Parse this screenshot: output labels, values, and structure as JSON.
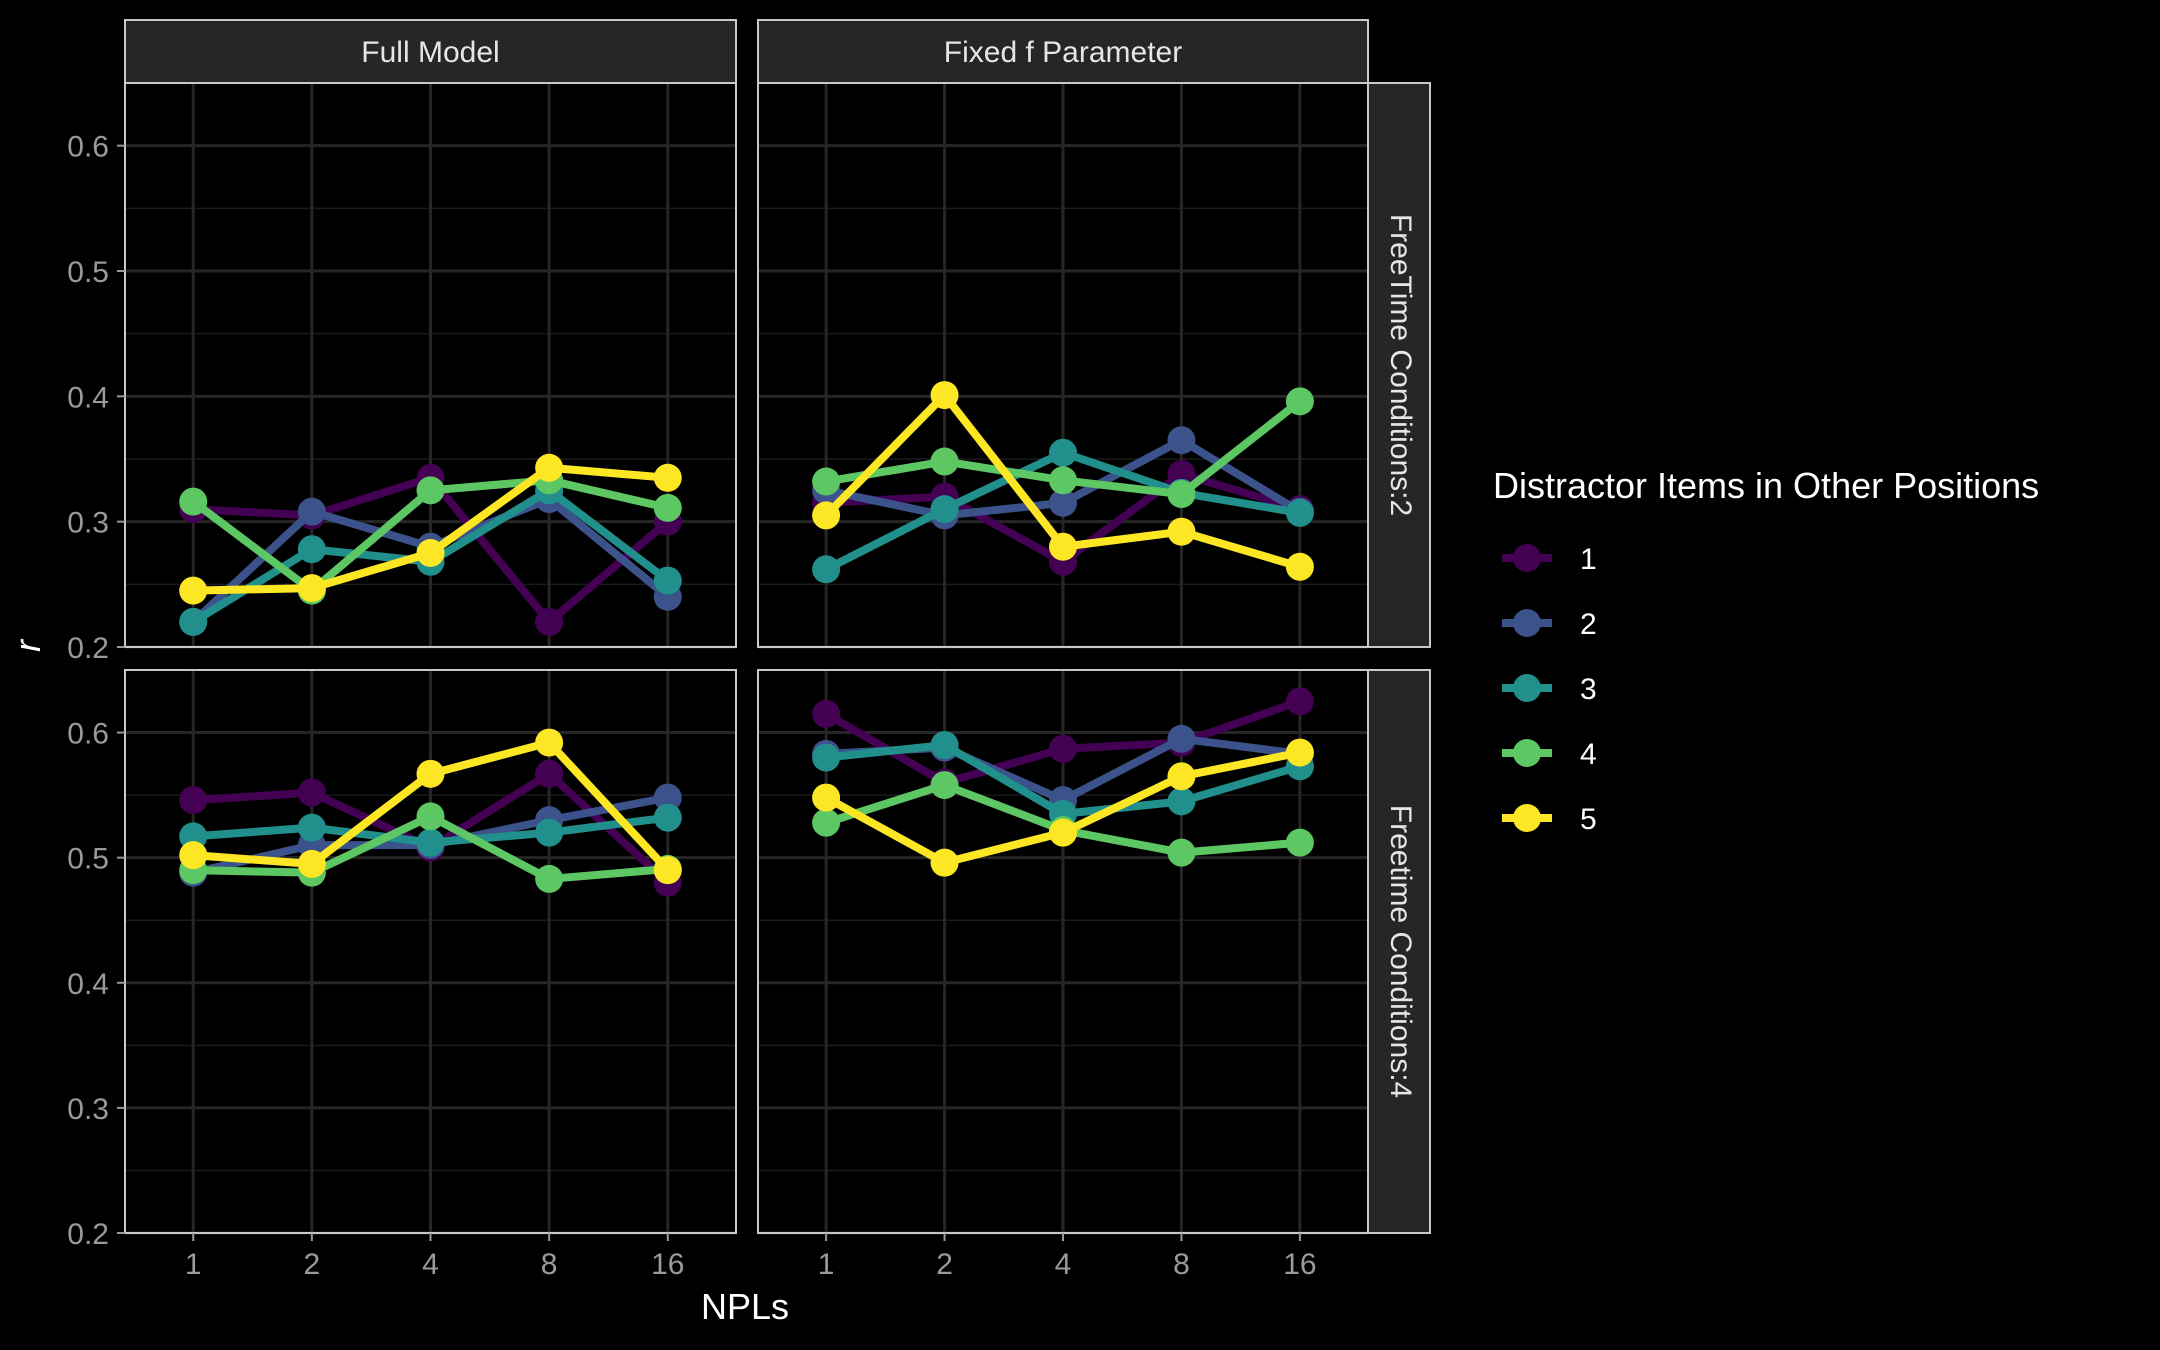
{
  "chart_data": {
    "type": "line",
    "facet_columns": [
      "Full Model",
      "Fixed f Parameter"
    ],
    "facet_rows": [
      "FreeTime Conditions:2",
      "Freetime Conditions:4"
    ],
    "x_categories": [
      "1",
      "2",
      "4",
      "8",
      "16"
    ],
    "xlabel": "NPLs",
    "ylabel": "r",
    "ylim": [
      0.2,
      0.65
    ],
    "y_ticks": [
      "0.2",
      "0.3",
      "0.4",
      "0.5",
      "0.6"
    ],
    "legend_title": "Distractor Items in Other Positions",
    "legend_placement": "right",
    "grid": true,
    "theme": "dark",
    "series_colors": {
      "1": "#440154",
      "2": "#3B528B",
      "3": "#21908C",
      "4": "#5DC863",
      "5": "#FDE725"
    },
    "series_order": [
      "1",
      "2",
      "3",
      "4",
      "5"
    ],
    "panels": [
      {
        "column": "Full Model",
        "row": "FreeTime Conditions:2",
        "series": [
          {
            "name": "1",
            "values": [
              0.31,
              0.305,
              0.335,
              0.22,
              0.3
            ]
          },
          {
            "name": "2",
            "values": [
              0.22,
              0.308,
              0.28,
              0.318,
              0.24
            ]
          },
          {
            "name": "3",
            "values": [
              0.22,
              0.278,
              0.268,
              0.325,
              0.253
            ]
          },
          {
            "name": "4",
            "values": [
              0.316,
              0.245,
              0.325,
              0.333,
              0.311
            ]
          },
          {
            "name": "5",
            "values": [
              0.245,
              0.247,
              0.275,
              0.343,
              0.335
            ]
          }
        ]
      },
      {
        "column": "Fixed f Parameter",
        "row": "FreeTime Conditions:2",
        "series": [
          {
            "name": "1",
            "values": [
              0.315,
              0.32,
              0.268,
              0.338,
              0.31
            ]
          },
          {
            "name": "2",
            "values": [
              0.325,
              0.305,
              0.315,
              0.365,
              0.308
            ]
          },
          {
            "name": "3",
            "values": [
              0.262,
              0.31,
              0.355,
              0.323,
              0.307
            ]
          },
          {
            "name": "4",
            "values": [
              0.332,
              0.348,
              0.333,
              0.322,
              0.396
            ]
          },
          {
            "name": "5",
            "values": [
              0.305,
              0.401,
              0.28,
              0.292,
              0.264
            ]
          }
        ]
      },
      {
        "column": "Full Model",
        "row": "Freetime Conditions:4",
        "series": [
          {
            "name": "1",
            "values": [
              0.546,
              0.552,
              0.508,
              0.567,
              0.48
            ]
          },
          {
            "name": "2",
            "values": [
              0.488,
              0.51,
              0.51,
              0.53,
              0.548
            ]
          },
          {
            "name": "3",
            "values": [
              0.517,
              0.524,
              0.512,
              0.52,
              0.532
            ]
          },
          {
            "name": "4",
            "values": [
              0.49,
              0.488,
              0.533,
              0.483,
              0.491
            ]
          },
          {
            "name": "5",
            "values": [
              0.502,
              0.495,
              0.567,
              0.592,
              0.49
            ]
          }
        ]
      },
      {
        "column": "Fixed f Parameter",
        "row": "Freetime Conditions:4",
        "series": [
          {
            "name": "1",
            "values": [
              0.615,
              0.56,
              0.587,
              0.592,
              0.625
            ]
          },
          {
            "name": "2",
            "values": [
              0.583,
              0.588,
              0.546,
              0.595,
              0.583
            ]
          },
          {
            "name": "3",
            "values": [
              0.58,
              0.59,
              0.535,
              0.545,
              0.573
            ]
          },
          {
            "name": "4",
            "values": [
              0.528,
              0.558,
              0.522,
              0.504,
              0.512
            ]
          },
          {
            "name": "5",
            "values": [
              0.548,
              0.496,
              0.52,
              0.565,
              0.584
            ]
          }
        ]
      }
    ]
  }
}
